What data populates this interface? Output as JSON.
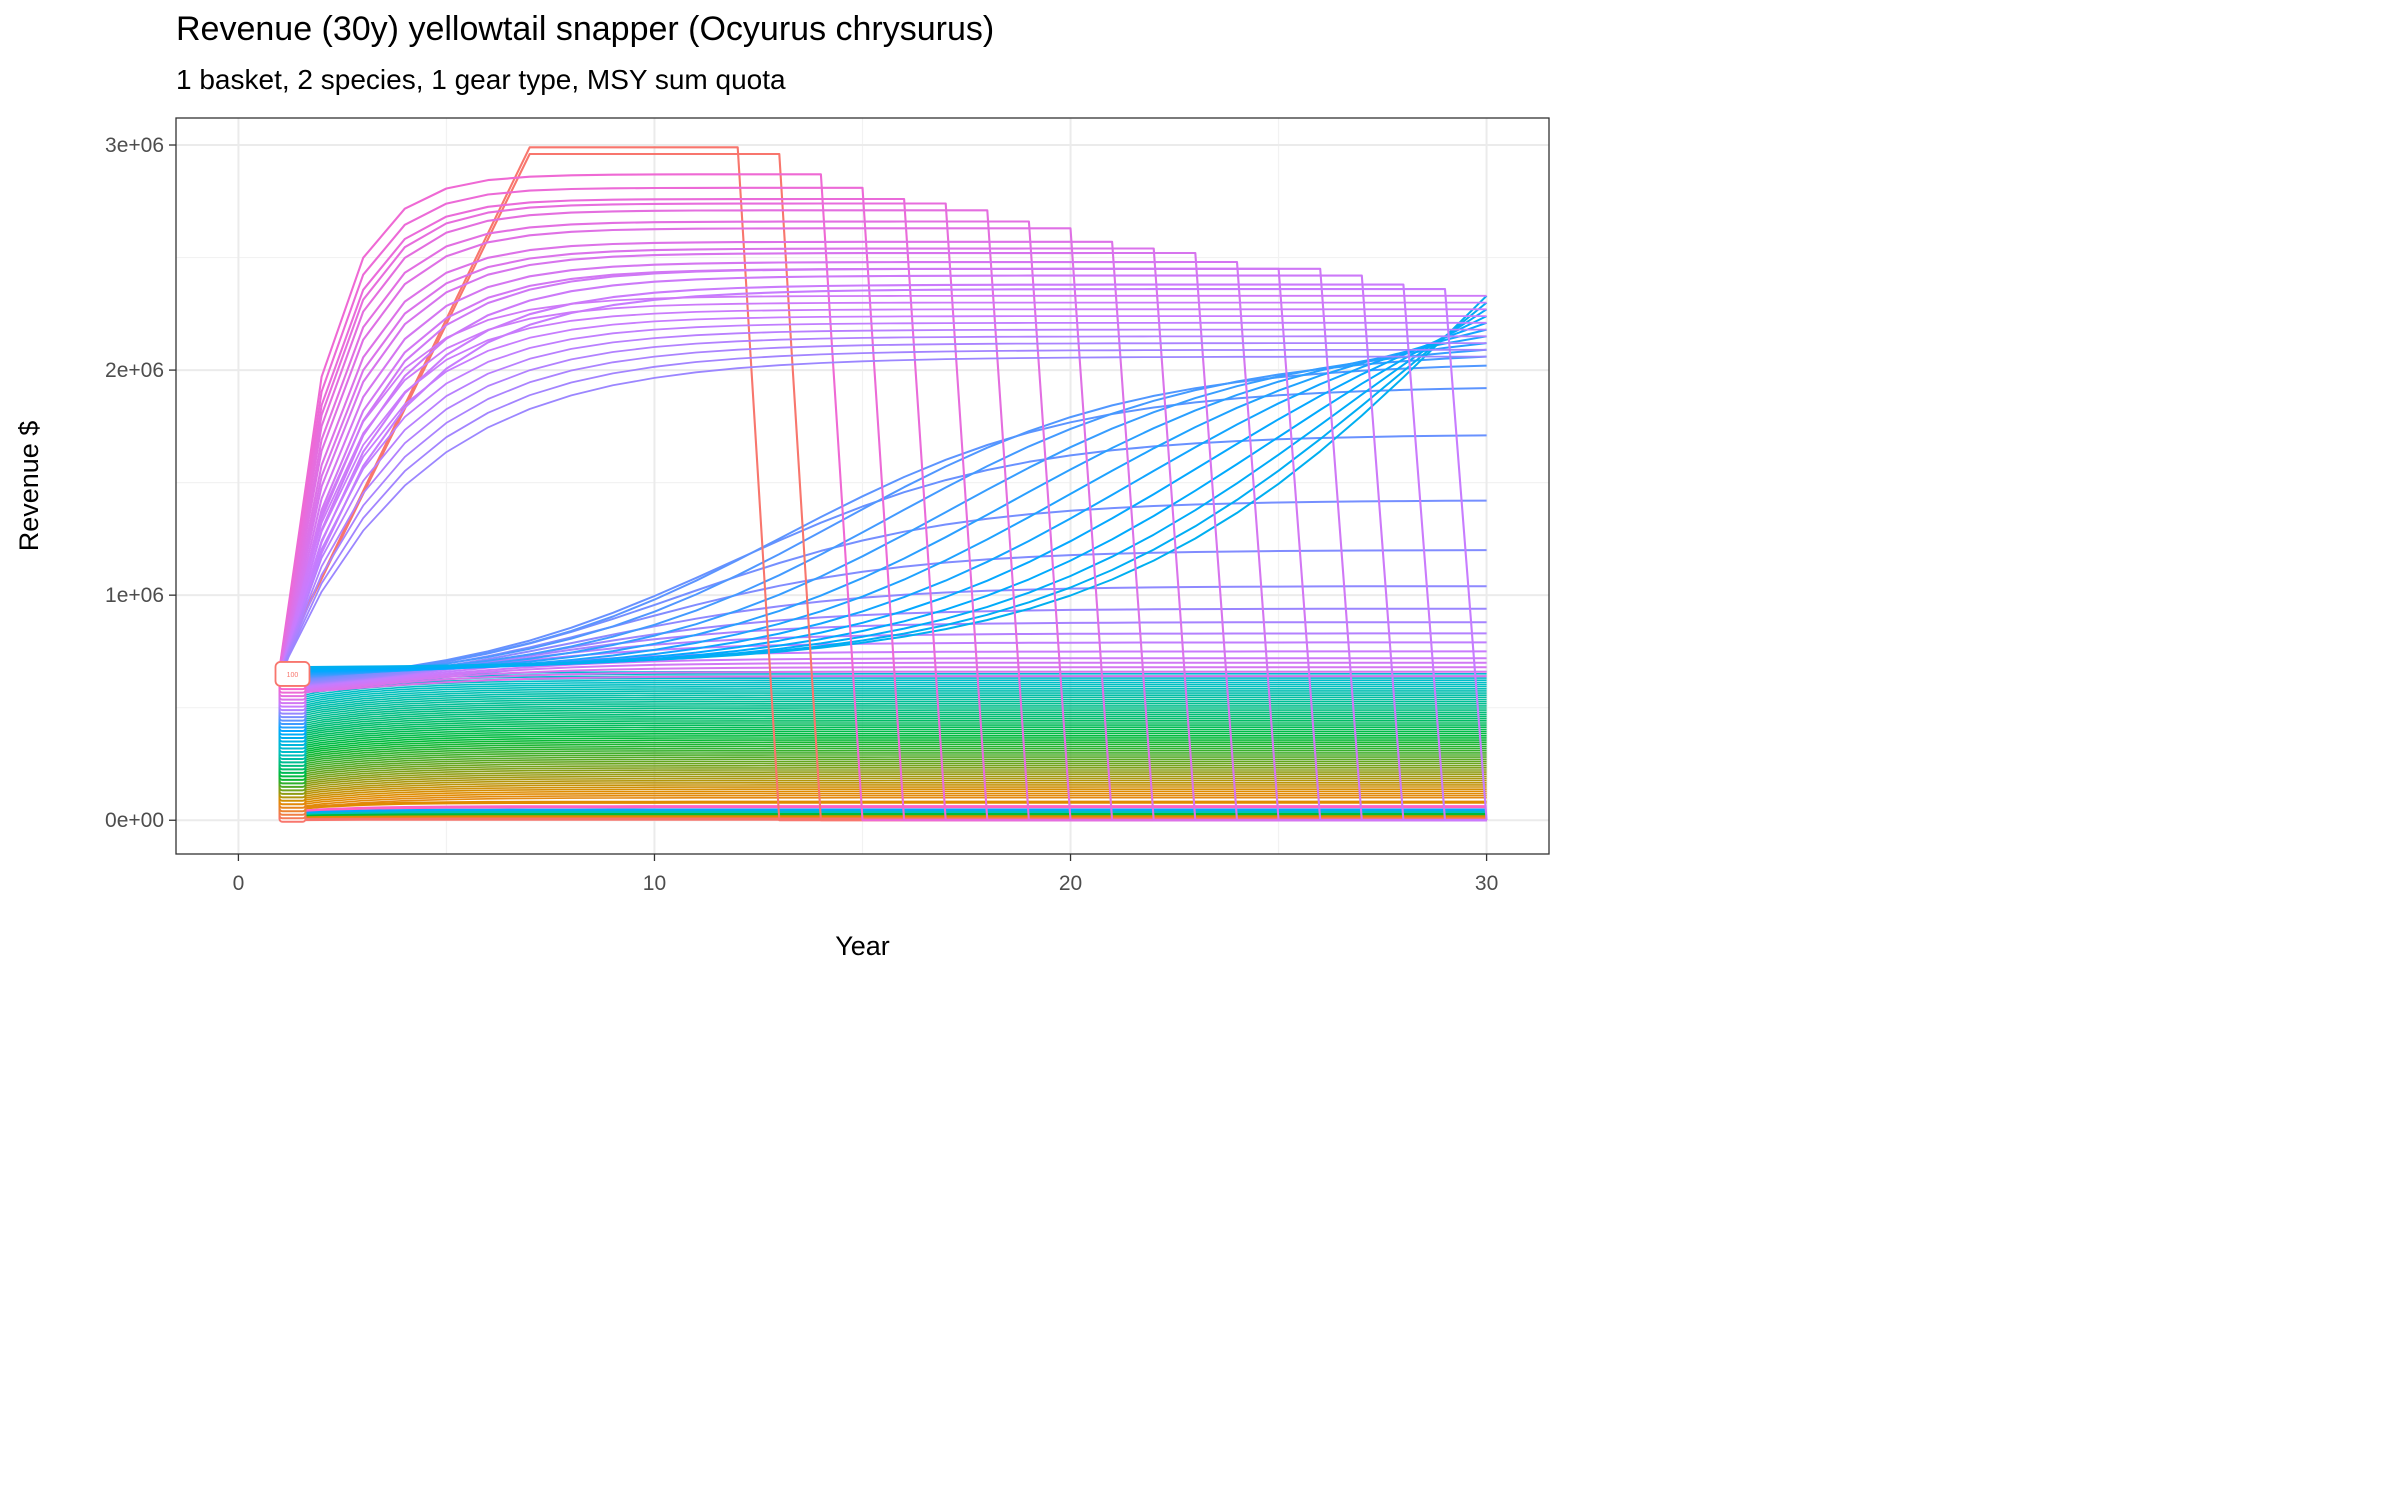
{
  "chart_data": {
    "type": "line",
    "title": "Revenue (30y) yellowtail snapper (Ocyurus chrysurus)",
    "subtitle": "1 basket, 2 species, 1 gear type, MSY sum quota",
    "xlabel": "Year",
    "ylabel": "Revenue $",
    "xlim": [
      -1.5,
      31.5
    ],
    "ylim": [
      -150000,
      3120000
    ],
    "x_ticks": [
      0,
      10,
      20,
      30
    ],
    "x_tick_labels": [
      "0",
      "10",
      "20",
      "30"
    ],
    "y_ticks": [
      0,
      1000000,
      2000000,
      3000000
    ],
    "y_tick_labels": [
      "0e+00",
      "1e+06",
      "2e+06",
      "3e+06"
    ],
    "grid": true,
    "legend": "none",
    "x_range": [
      1,
      30
    ],
    "label_badge": {
      "text": "100",
      "x": 1.3,
      "y": 650000
    },
    "families": {
      "collapse": {
        "description": "trajectories that rise to a plateau and collapse to zero at year 12-30",
        "plateaus": [
          2990000,
          2960000,
          2870000,
          2810000,
          2760000,
          2740000,
          2710000,
          2660000,
          2630000,
          2570000,
          2540000,
          2520000,
          2480000,
          2450000,
          2450000,
          2420000,
          2380000,
          2360000
        ],
        "collapse_years": [
          12,
          13,
          14,
          15,
          16,
          17,
          18,
          19,
          20,
          21,
          22,
          23,
          24,
          25,
          26,
          27,
          28,
          29
        ]
      },
      "plateau_endpoints_year30": [
        2330000,
        2300000,
        2270000,
        2240000,
        2210000,
        2180000,
        2150000,
        2120000,
        2090000,
        2060000,
        2020000,
        1920000,
        1710000,
        1420000,
        1200000,
        1040000,
        940000,
        880000,
        830000,
        790000,
        750000,
        720000,
        700000,
        680000,
        660000,
        640000,
        620000,
        600000,
        580000,
        560000,
        540000,
        520000,
        500000,
        480000,
        460000,
        440000,
        420000,
        400000,
        380000,
        360000,
        340000,
        320000,
        300000,
        280000,
        260000,
        240000,
        220000,
        200000,
        180000,
        160000,
        140000,
        120000,
        100000
      ],
      "start_values_year1": [
        700000,
        600000,
        500000,
        400000,
        300000,
        200000,
        100000,
        50000,
        20000
      ]
    },
    "colors": {
      "red": "#F8766D",
      "orange": "#E08B00",
      "green": "#00BA38",
      "teal": "#00BFC4",
      "blue": "#00A9FF",
      "purple": "#C77CFF",
      "pink": "#FF61C3"
    }
  }
}
